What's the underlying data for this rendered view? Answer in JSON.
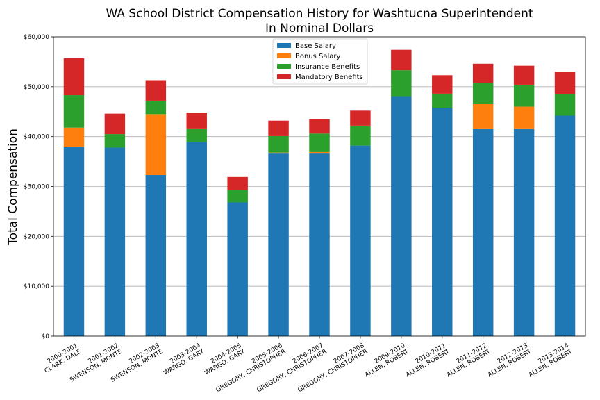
{
  "chart_data": {
    "type": "bar",
    "stacked": true,
    "title": "WA School District Compensation History for Washtucna Superintendent",
    "subtitle": "In Nominal Dollars",
    "xlabel": "",
    "ylabel": "Total Compensation",
    "ylim": [
      0,
      60000
    ],
    "yticks": [
      0,
      10000,
      20000,
      30000,
      40000,
      50000,
      60000
    ],
    "ytick_labels": [
      "$0",
      "$10,000",
      "$20,000",
      "$30,000",
      "$40,000",
      "$50,000",
      "$60,000"
    ],
    "grid": "horizontal",
    "legend_position": "top-center",
    "categories": [
      [
        "2000-2001",
        "CLARK, DALE"
      ],
      [
        "2001-2002",
        "SWENSON, MONTE"
      ],
      [
        "2002-2003",
        "SWENSON, MONTE"
      ],
      [
        "2003-2004",
        "WARGO, GARY"
      ],
      [
        "2004-2005",
        "WARGO, GARY"
      ],
      [
        "2005-2006",
        "GREGORY, CHRISTOPHER"
      ],
      [
        "2006-2007",
        "GREGORY, CHRISTOPHER"
      ],
      [
        "2007-2008",
        "GREGORY, CHRISTOPHER"
      ],
      [
        "2009-2010",
        "ALLEN, ROBERT"
      ],
      [
        "2010-2011",
        "ALLEN, ROBERT"
      ],
      [
        "2011-2012",
        "ALLEN, ROBERT"
      ],
      [
        "2012-2013",
        "ALLEN, ROBERT"
      ],
      [
        "2013-2014",
        "ALLEN, ROBERT"
      ]
    ],
    "series": [
      {
        "name": "Base Salary",
        "color": "#1f77b4",
        "values": [
          37900,
          37800,
          32300,
          38900,
          26800,
          36600,
          36600,
          38200,
          48100,
          45800,
          41500,
          41500,
          44200
        ]
      },
      {
        "name": "Bonus Salary",
        "color": "#ff7f0e",
        "values": [
          3900,
          0,
          12200,
          0,
          0,
          200,
          300,
          0,
          0,
          0,
          5000,
          4500,
          0
        ]
      },
      {
        "name": "Insurance Benefits",
        "color": "#2ca02c",
        "values": [
          6500,
          2700,
          2700,
          2600,
          2500,
          3300,
          3700,
          4000,
          5200,
          2800,
          4200,
          4400,
          4300
        ]
      },
      {
        "name": "Mandatory Benefits",
        "color": "#d62728",
        "values": [
          7400,
          4100,
          4100,
          3300,
          2600,
          3100,
          2900,
          3000,
          4100,
          3700,
          3900,
          3800,
          4500
        ]
      }
    ]
  }
}
